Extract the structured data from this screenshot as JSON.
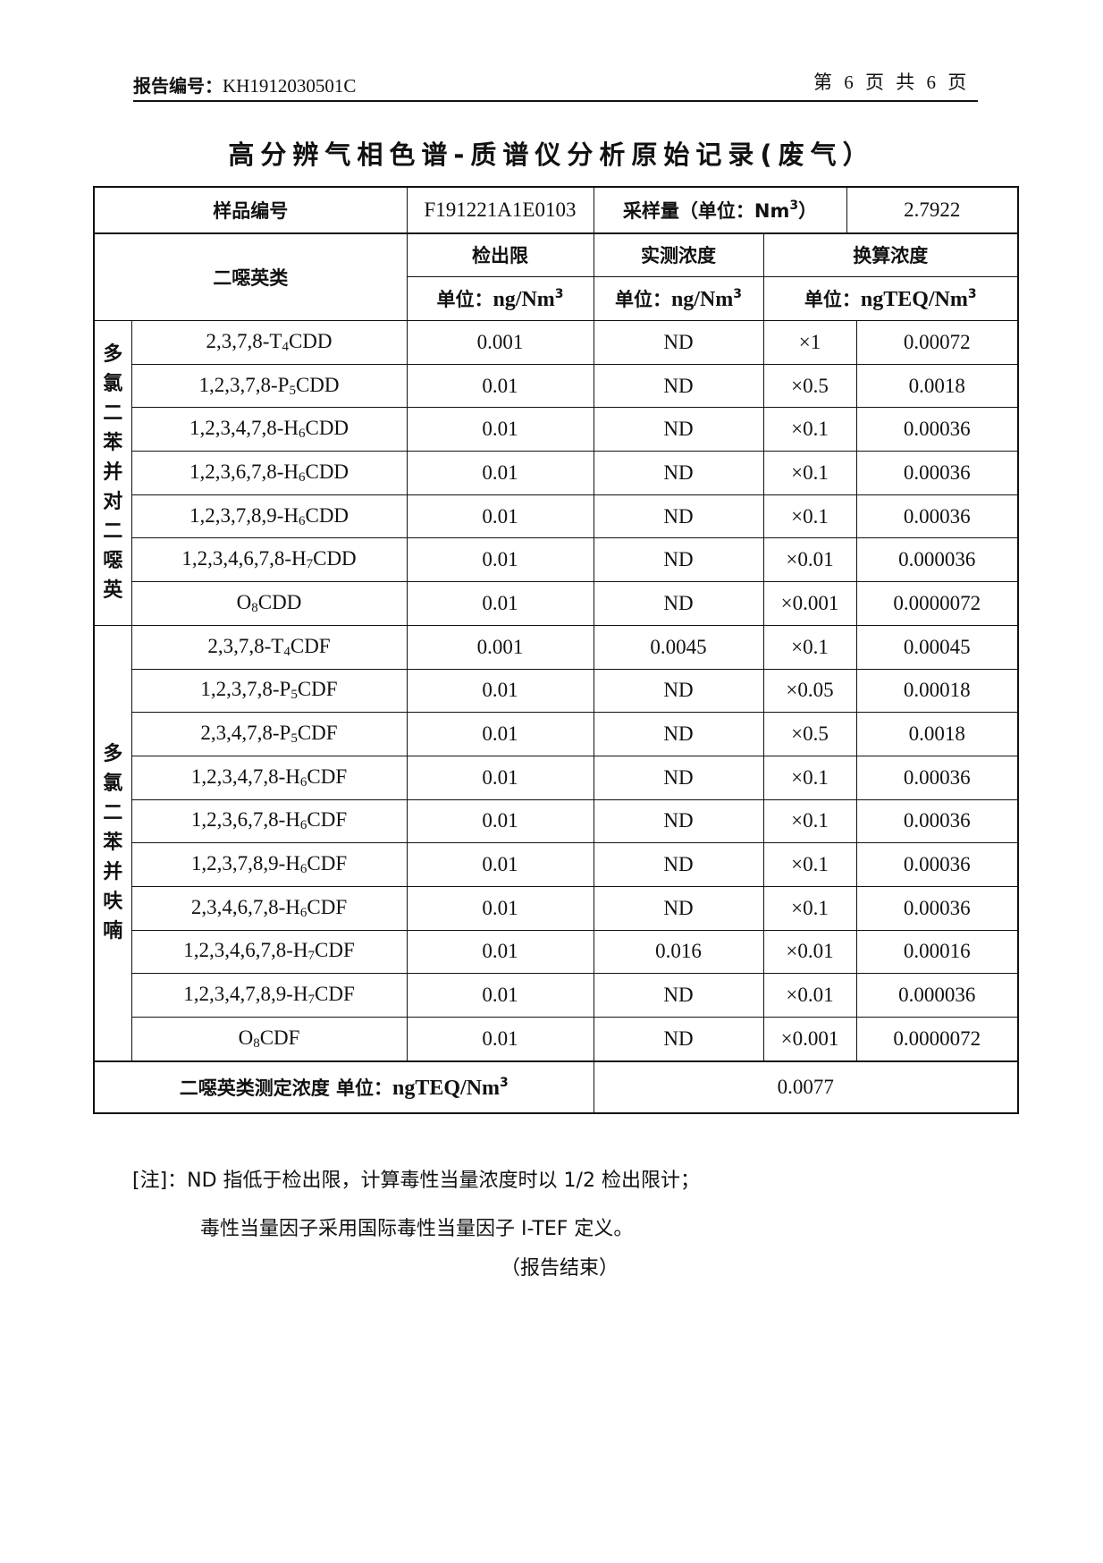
{
  "header": {
    "report_no_label": "报告编号：",
    "report_no": "KH1912030501C",
    "page_info": "第 6 页 共 6 页"
  },
  "title": "高分辨气相色谱-质谱仪分析原始记录(废气）",
  "info_row": {
    "sample_id_label": "样品编号",
    "sample_id": "F191221A1E0103",
    "volume_label": "采样量（单位：Nm",
    "volume_label_sup": "3",
    "volume_label_end": "）",
    "volume": "2.7922"
  },
  "columns": {
    "group_header": "二噁英类",
    "detection_limit": "检出限",
    "measured": "实测浓度",
    "converted": "换算浓度",
    "unit_prefix": "单位：",
    "unit_ng": "ng/Nm",
    "unit_teq": "ngTEQ/Nm",
    "unit_sup": "3"
  },
  "groups": [
    {
      "label": [
        "多",
        "氯",
        "二",
        "苯",
        "并",
        "对",
        "二",
        "噁",
        "英"
      ],
      "rows": [
        {
          "pre": "2,3,7,8-T",
          "sub": "4",
          "post": "CDD",
          "dl": "0.001",
          "measured": "ND",
          "tef": "×1",
          "teq": "0.00072"
        },
        {
          "pre": "1,2,3,7,8-P",
          "sub": "5",
          "post": "CDD",
          "dl": "0.01",
          "measured": "ND",
          "tef": "×0.5",
          "teq": "0.0018"
        },
        {
          "pre": "1,2,3,4,7,8-H",
          "sub": "6",
          "post": "CDD",
          "dl": "0.01",
          "measured": "ND",
          "tef": "×0.1",
          "teq": "0.00036"
        },
        {
          "pre": "1,2,3,6,7,8-H",
          "sub": "6",
          "post": "CDD",
          "dl": "0.01",
          "measured": "ND",
          "tef": "×0.1",
          "teq": "0.00036"
        },
        {
          "pre": "1,2,3,7,8,9-H",
          "sub": "6",
          "post": "CDD",
          "dl": "0.01",
          "measured": "ND",
          "tef": "×0.1",
          "teq": "0.00036"
        },
        {
          "pre": "1,2,3,4,6,7,8-H",
          "sub": "7",
          "post": "CDD",
          "dl": "0.01",
          "measured": "ND",
          "tef": "×0.01",
          "teq": "0.000036"
        },
        {
          "pre": "O",
          "sub": "8",
          "post": "CDD",
          "dl": "0.01",
          "measured": "ND",
          "tef": "×0.001",
          "teq": "0.0000072"
        }
      ]
    },
    {
      "label": [
        "多",
        "氯",
        "二",
        "苯",
        "并",
        "呋",
        "喃"
      ],
      "rows": [
        {
          "pre": "2,3,7,8-T",
          "sub": "4",
          "post": "CDF",
          "dl": "0.001",
          "measured": "0.0045",
          "tef": "×0.1",
          "teq": "0.00045"
        },
        {
          "pre": "1,2,3,7,8-P",
          "sub": "5",
          "post": "CDF",
          "dl": "0.01",
          "measured": "ND",
          "tef": "×0.05",
          "teq": "0.00018"
        },
        {
          "pre": "2,3,4,7,8-P",
          "sub": "5",
          "post": "CDF",
          "dl": "0.01",
          "measured": "ND",
          "tef": "×0.5",
          "teq": "0.0018"
        },
        {
          "pre": "1,2,3,4,7,8-H",
          "sub": "6",
          "post": "CDF",
          "dl": "0.01",
          "measured": "ND",
          "tef": "×0.1",
          "teq": "0.00036"
        },
        {
          "pre": "1,2,3,6,7,8-H",
          "sub": "6",
          "post": "CDF",
          "dl": "0.01",
          "measured": "ND",
          "tef": "×0.1",
          "teq": "0.00036"
        },
        {
          "pre": "1,2,3,7,8,9-H",
          "sub": "6",
          "post": "CDF",
          "dl": "0.01",
          "measured": "ND",
          "tef": "×0.1",
          "teq": "0.00036"
        },
        {
          "pre": "2,3,4,6,7,8-H",
          "sub": "6",
          "post": "CDF",
          "dl": "0.01",
          "measured": "ND",
          "tef": "×0.1",
          "teq": "0.00036"
        },
        {
          "pre": "1,2,3,4,6,7,8-H",
          "sub": "7",
          "post": "CDF",
          "dl": "0.01",
          "measured": "0.016",
          "tef": "×0.01",
          "teq": "0.00016"
        },
        {
          "pre": "1,2,3,4,7,8,9-H",
          "sub": "7",
          "post": "CDF",
          "dl": "0.01",
          "measured": "ND",
          "tef": "×0.01",
          "teq": "0.000036"
        },
        {
          "pre": "O",
          "sub": "8",
          "post": "CDF",
          "dl": "0.01",
          "measured": "ND",
          "tef": "×0.001",
          "teq": "0.0000072"
        }
      ]
    }
  ],
  "total": {
    "label": "二噁英类测定浓度   单位：",
    "unit": "ngTEQ/Nm",
    "unit_sup": "3",
    "value": "0.0077"
  },
  "notes": {
    "line1": "[注]：ND 指低于检出限，计算毒性当量浓度时以 1/2 检出限计；",
    "line2": "毒性当量因子采用国际毒性当量因子 I-TEF 定义。",
    "end": "（报告结束）"
  }
}
